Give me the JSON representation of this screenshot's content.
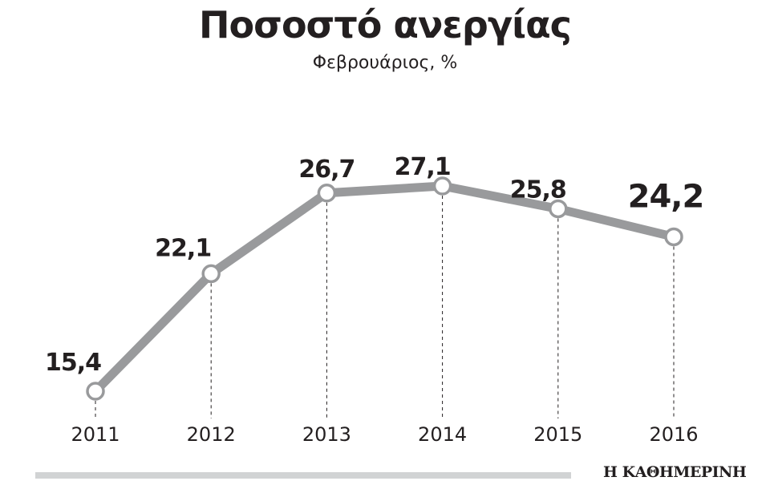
{
  "title": "Ποσοστό ανεργίας",
  "subtitle": "Φεβρουάριος, %",
  "logo": "Η ΚΑΘΗΜΕΡΙΝΗ",
  "colors": {
    "line": "#999a9c",
    "marker_fill": "#ffffff",
    "text": "#231f20",
    "footer_bar": "#d1d3d4"
  },
  "chart_data": {
    "type": "line",
    "title": "Ποσοστό ανεργίας",
    "subtitle": "Φεβρουάριος, %",
    "xlabel": "",
    "ylabel": "%",
    "categories": [
      "2011",
      "2012",
      "2013",
      "2014",
      "2015",
      "2016"
    ],
    "values": [
      15.4,
      22.1,
      26.7,
      27.1,
      25.8,
      24.2
    ],
    "data_labels": [
      "15,4",
      "22,1",
      "26,7",
      "27,1",
      "25,8",
      "24,2"
    ],
    "grid": false,
    "legend": "none",
    "source": "Η ΚΑΘΗΜΕΡΙΝΗ"
  }
}
